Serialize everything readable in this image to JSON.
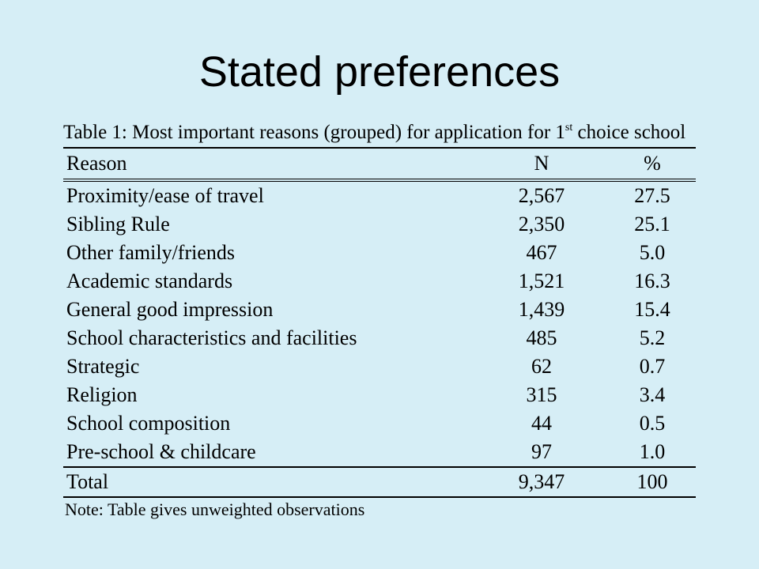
{
  "slide": {
    "title": "Stated preferences"
  },
  "table": {
    "caption_main": "Table 1: Most important reasons (grouped) for application for 1",
    "caption_sup": "st",
    "caption_end": " choice school",
    "columns": [
      "Reason",
      "N",
      "%"
    ],
    "rows": [
      {
        "reason": "Proximity/ease of travel",
        "n": "2,567",
        "pct": "27.5"
      },
      {
        "reason": "Sibling Rule",
        "n": "2,350",
        "pct": "25.1"
      },
      {
        "reason": "Other family/friends",
        "n": "467",
        "pct": "5.0"
      },
      {
        "reason": "Academic standards",
        "n": "1,521",
        "pct": "16.3"
      },
      {
        "reason": "General good impression",
        "n": "1,439",
        "pct": "15.4"
      },
      {
        "reason": "School characteristics and facilities",
        "n": "485",
        "pct": "5.2"
      },
      {
        "reason": "Strategic",
        "n": "62",
        "pct": "0.7"
      },
      {
        "reason": "Religion",
        "n": "315",
        "pct": "3.4"
      },
      {
        "reason": "School composition",
        "n": "44",
        "pct": "0.5"
      },
      {
        "reason": "Pre-school & childcare",
        "n": "97",
        "pct": "1.0"
      }
    ],
    "total": {
      "reason": "Total",
      "n": "9,347",
      "pct": "100"
    },
    "note": "Note: Table gives unweighted observations"
  }
}
